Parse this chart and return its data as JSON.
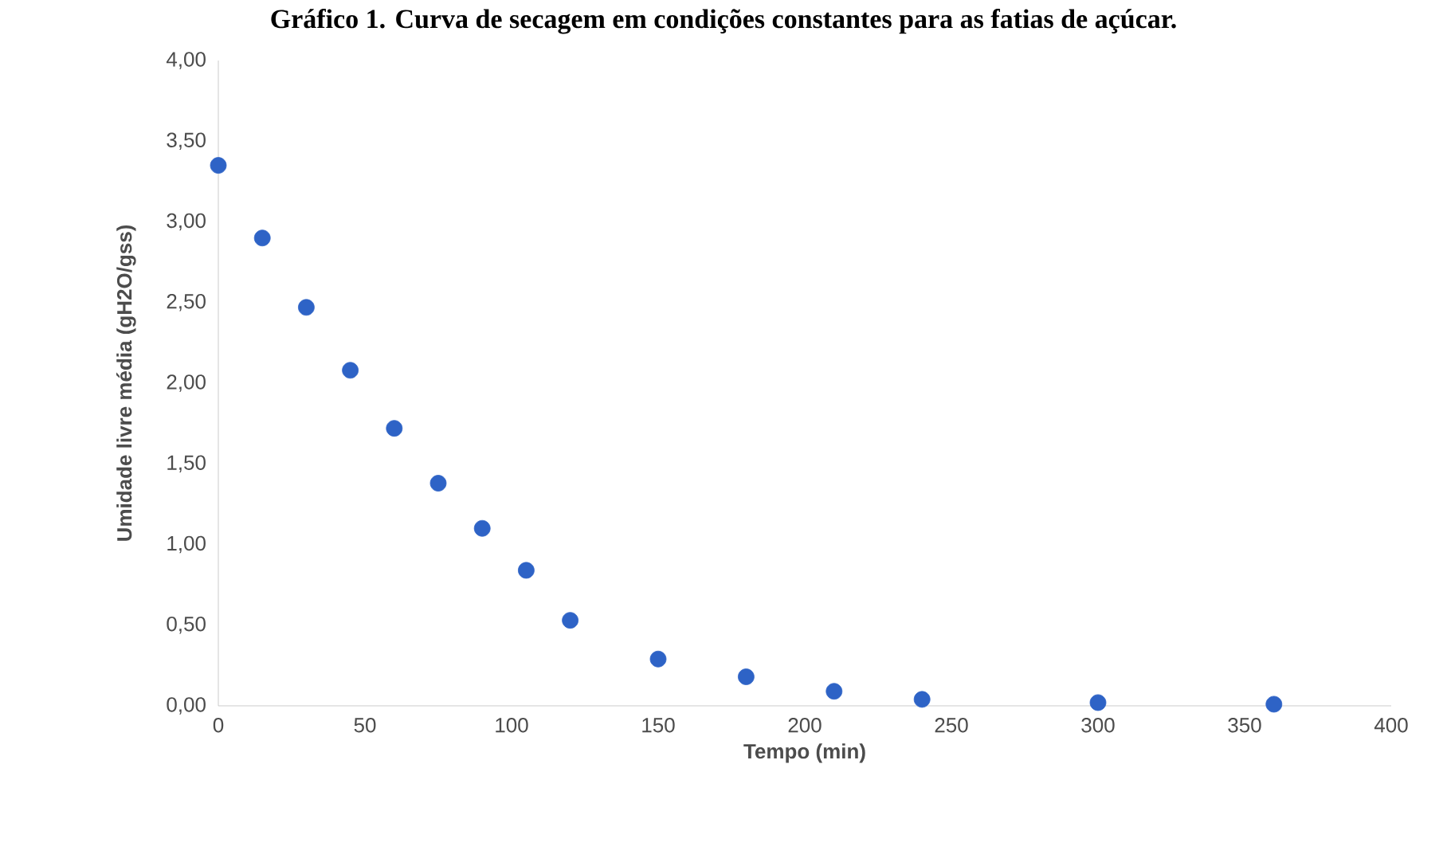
{
  "chart_data": {
    "type": "scatter",
    "title": "Gráfico 1. Curva de secagem em condições constantes para as fatias de açúcar.",
    "xlabel": "Tempo (min)",
    "ylabel": "Umidade livre média (gH2O/gss)",
    "x": [
      0,
      15,
      30,
      45,
      60,
      75,
      90,
      105,
      120,
      150,
      180,
      210,
      240,
      300,
      360
    ],
    "series": [
      {
        "color": "#2e63c6",
        "values": [
          3.35,
          2.9,
          2.47,
          2.08,
          1.72,
          1.38,
          1.1,
          0.84,
          0.53,
          0.29,
          0.18,
          0.09,
          0.04,
          0.02,
          0.01
        ]
      }
    ],
    "xlim": [
      0,
      400
    ],
    "xticks": [
      0,
      50,
      100,
      150,
      200,
      250,
      300,
      350,
      400
    ],
    "ylim": [
      0,
      4
    ],
    "yticks": [
      {
        "value": 0,
        "label": "0,00"
      },
      {
        "value": 0.5,
        "label": "0,50"
      },
      {
        "value": 1,
        "label": "1,00"
      },
      {
        "value": 1.5,
        "label": "1,50"
      },
      {
        "value": 2,
        "label": "2,00"
      },
      {
        "value": 2.5,
        "label": "2,50"
      },
      {
        "value": 3,
        "label": "3,00"
      },
      {
        "value": 3.5,
        "label": "3,50"
      },
      {
        "value": 4,
        "label": "4,00"
      }
    ],
    "grid": false,
    "marker": "circle"
  }
}
